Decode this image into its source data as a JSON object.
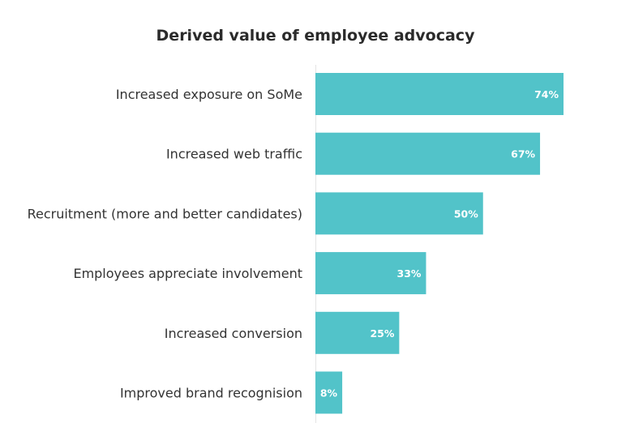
{
  "chart_data": {
    "type": "bar",
    "orientation": "horizontal",
    "title": "Derived value of employee advocacy",
    "categories": [
      "Increased exposure on SoMe",
      "Increased web traffic",
      "Recruitment (more and better candidates)",
      "Employees appreciate involvement",
      "Increased conversion",
      "Improved brand recognision"
    ],
    "values": [
      74,
      67,
      50,
      33,
      25,
      8
    ],
    "value_labels": [
      "74%",
      "67%",
      "50%",
      "33%",
      "25%",
      "8%"
    ],
    "xlabel": "",
    "ylabel": "",
    "xlim": [
      0,
      74
    ],
    "grid": false,
    "bar_color": "#52c3c9"
  }
}
